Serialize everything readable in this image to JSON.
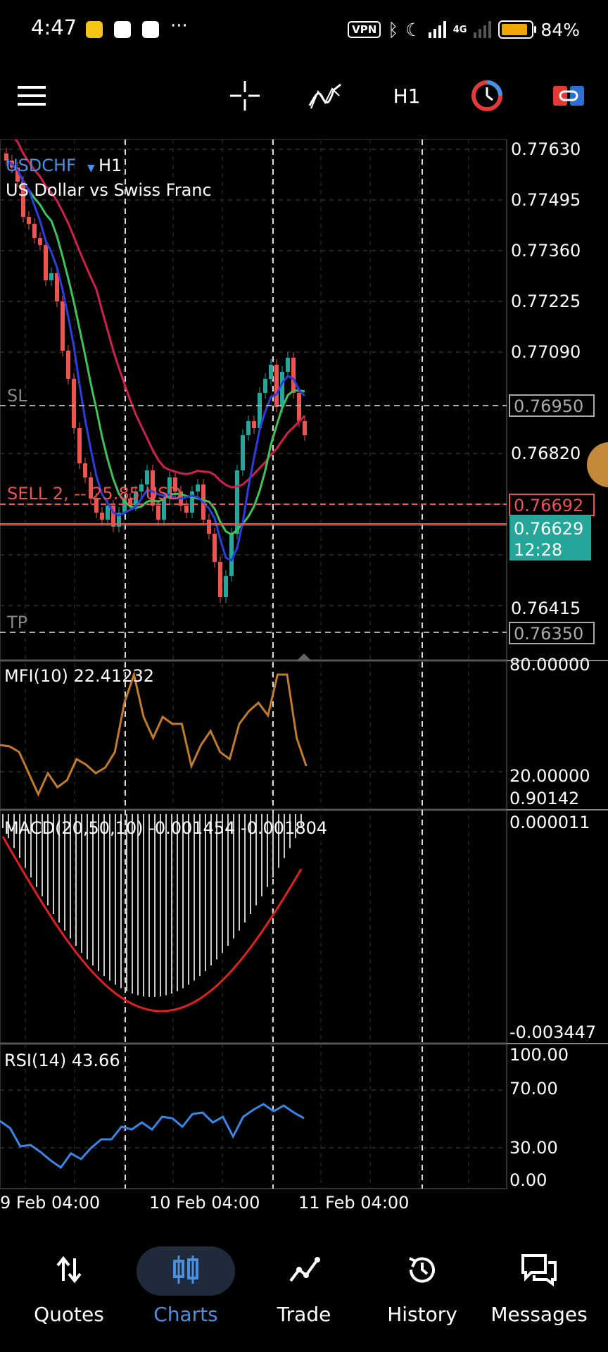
{
  "status_bar": {
    "time": "4:47",
    "more": "···",
    "vpn": "VPN",
    "network": "4G",
    "battery": "84%",
    "battery_level": 0.84
  },
  "toolbar": {
    "timeframe": "H1",
    "icons": [
      "menu-icon",
      "crosshair-icon",
      "indicators-icon",
      "timeframe",
      "objects-icon",
      "trade-panel-icon"
    ]
  },
  "chart": {
    "symbol": "USDCHF",
    "timeframe": "H1",
    "description": "US Dollar vs Swiss Franc",
    "sl_label": "SL",
    "tp_label": "TP",
    "order_label": "SELL 2, -- 25.85 USD",
    "sl_price": "0.76950",
    "tp_price": "0.76350",
    "order_price": "0.76692",
    "bid_price": "0.76629",
    "bar_timer": "12:28",
    "price_axis": [
      "0.77630",
      "0.77495",
      "0.77360",
      "0.77225",
      "0.77090",
      "0.76820",
      "0.76415"
    ],
    "time_axis": [
      "9 Feb 04:00",
      "10 Feb 04:00",
      "11 Feb 04:00"
    ],
    "colors": {
      "bull": "#26a69a",
      "bear": "#ef5350",
      "ma_fast": "#2d3ee0",
      "ma_mid": "#3cc45a",
      "ma_slow": "#d0204a",
      "bid_badge": "#26a69a",
      "order_line": "#ef5350"
    }
  },
  "mfi": {
    "label": "MFI(10) 22.41232",
    "levels": [
      "80.00000",
      "20.00000"
    ],
    "extra": "0.90142",
    "color": "#c27a2c"
  },
  "macd": {
    "label": "MACD(20,50,10) -0.001454 -0.001804",
    "top": "0.000011",
    "bottom": "-0.003447",
    "signal_color": "#e02020"
  },
  "rsi": {
    "label": "RSI(14) 43.66",
    "levels": [
      "100.00",
      "70.00",
      "30.00",
      "0.00"
    ],
    "color": "#3a86e8"
  },
  "nav": {
    "items": [
      {
        "label": "Quotes",
        "icon": "quotes-icon"
      },
      {
        "label": "Charts",
        "icon": "charts-icon"
      },
      {
        "label": "Trade",
        "icon": "trade-icon"
      },
      {
        "label": "History",
        "icon": "history-icon"
      },
      {
        "label": "Messages",
        "icon": "messages-icon"
      }
    ],
    "active": "Charts"
  }
}
